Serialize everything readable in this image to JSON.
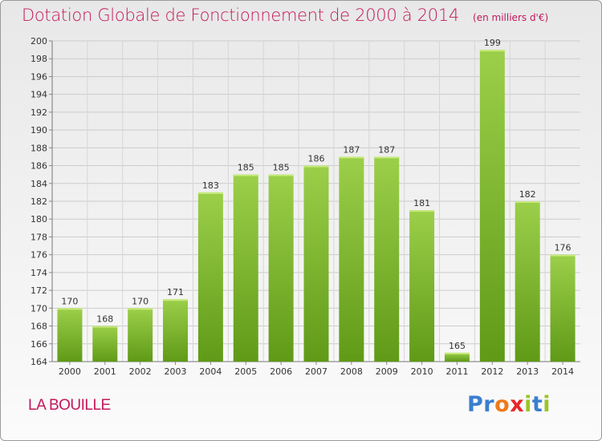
{
  "header": {
    "title": "Dotation Globale de Fonctionnement de 2000 à 2014",
    "unit": "(en milliers d'€)"
  },
  "footer": {
    "commune": "LA BOUILLE",
    "logo_text": "Proxiti"
  },
  "colors": {
    "title": "#c2185b",
    "bar_light": "#9ccf4a",
    "bar_dark": "#5f9a17",
    "logo_letters": [
      "#3a7fcf",
      "#3a7fcf",
      "#f07a1a",
      "#e8262b",
      "#9bc428",
      "#3a7fcf",
      "#9bc428"
    ]
  },
  "chart_data": {
    "type": "bar",
    "title": "Dotation Globale de Fonctionnement de 2000 à 2014",
    "xlabel": "",
    "ylabel": "",
    "categories": [
      "2000",
      "2001",
      "2002",
      "2003",
      "2004",
      "2005",
      "2006",
      "2007",
      "2008",
      "2009",
      "2010",
      "2011",
      "2012",
      "2013",
      "2014"
    ],
    "values": [
      170,
      168,
      170,
      171,
      183,
      185,
      185,
      186,
      187,
      187,
      181,
      165,
      199,
      182,
      176
    ],
    "ylim": [
      164,
      200
    ],
    "yticks": [
      164,
      166,
      168,
      170,
      172,
      174,
      176,
      178,
      180,
      182,
      184,
      186,
      188,
      190,
      192,
      194,
      196,
      198,
      200
    ],
    "grid": true,
    "legend": "none"
  }
}
